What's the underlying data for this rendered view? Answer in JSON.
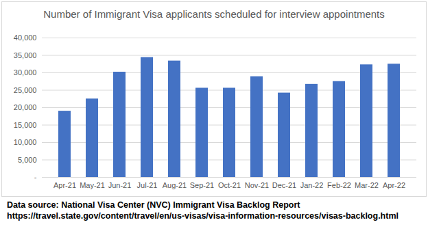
{
  "chart_data": {
    "type": "bar",
    "title": "Number of Immigrant Visa applicants scheduled for interview appointments",
    "categories": [
      "Apr-21",
      "May-21",
      "Jun-21",
      "Jul-21",
      "Aug-21",
      "Sep-21",
      "Oct-21",
      "Nov-21",
      "Dec-21",
      "Jan-22",
      "Feb-22",
      "Mar-22",
      "Apr-22"
    ],
    "values": [
      19000,
      22500,
      30200,
      34400,
      33400,
      25600,
      25600,
      28900,
      24200,
      26700,
      27500,
      32300,
      32500
    ],
    "color": "#4472c4",
    "ylim": [
      0,
      40000
    ],
    "yticks": [
      {
        "value": 0,
        "label": "-"
      },
      {
        "value": 5000,
        "label": "5,000"
      },
      {
        "value": 10000,
        "label": "10,000"
      },
      {
        "value": 15000,
        "label": "15,000"
      },
      {
        "value": 20000,
        "label": "20,000"
      },
      {
        "value": 25000,
        "label": "25,000"
      },
      {
        "value": 30000,
        "label": "30,000"
      },
      {
        "value": 35000,
        "label": "35,000"
      },
      {
        "value": 40000,
        "label": "40,000"
      }
    ],
    "grid": true,
    "annotations": [
      "Data source: National Visa Center (NVC) Immigrant Visa Backlog Report",
      "https://travel.state.gov/content/travel/en/us-visas/visa-information-resources/visas-backlog.html"
    ]
  }
}
